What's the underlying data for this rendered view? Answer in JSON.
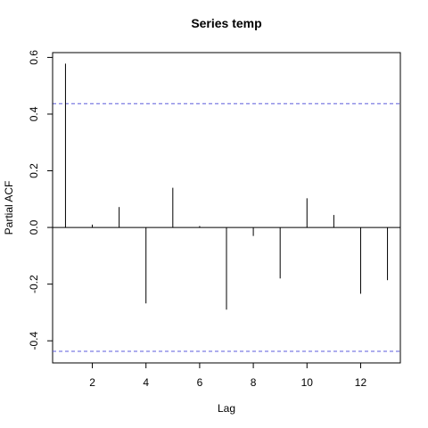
{
  "chart_data": {
    "type": "bar",
    "title": "Series  temp",
    "xlabel": "Lag",
    "ylabel": "Partial ACF",
    "x": [
      1,
      2,
      3,
      4,
      5,
      6,
      7,
      8,
      9,
      10,
      11,
      12,
      13
    ],
    "values": [
      0.578,
      0.01,
      0.072,
      -0.268,
      0.14,
      0.005,
      -0.29,
      -0.03,
      -0.18,
      0.103,
      0.044,
      -0.234,
      -0.186
    ],
    "confidence_bound": 0.437,
    "xlim": [
      0.52,
      13.48
    ],
    "ylim": [
      -0.478,
      0.617
    ],
    "x_ticks": [
      2,
      4,
      6,
      8,
      10,
      12
    ],
    "y_ticks": [
      -0.4,
      -0.2,
      0.0,
      0.2,
      0.4,
      0.6
    ],
    "y_tick_labels": [
      "-0.4",
      "-0.2",
      "0.0",
      "0.2",
      "0.4",
      "0.6"
    ],
    "bound_color": "#5b5bdc",
    "bar_color": "#000000",
    "grid": false
  }
}
